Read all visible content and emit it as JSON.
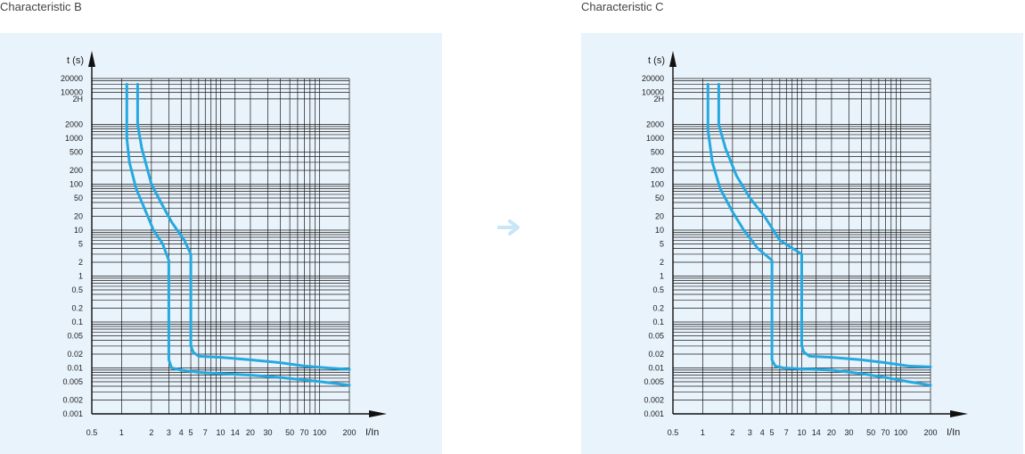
{
  "chart_data": [
    {
      "type": "line",
      "title": "Characteristic B",
      "xlabel": "I/In",
      "ylabel": "t (s)",
      "x_scale": "log",
      "y_scale": "log",
      "xlim": [
        0.5,
        200
      ],
      "ylim": [
        0.001,
        20000
      ],
      "x_ticks": [
        {
          "label": "0.5",
          "v": 0.5
        },
        {
          "label": "1",
          "v": 1
        },
        {
          "label": "2",
          "v": 2
        },
        {
          "label": "3",
          "v": 3
        },
        {
          "label": "4",
          "v": 4
        },
        {
          "label": "5",
          "v": 5
        },
        {
          "label": "7",
          "v": 7
        },
        {
          "label": "10",
          "v": 10
        },
        {
          "label": "14",
          "v": 14
        },
        {
          "label": "20",
          "v": 20
        },
        {
          "label": "30",
          "v": 30
        },
        {
          "label": "50",
          "v": 50
        },
        {
          "label": "70",
          "v": 70
        },
        {
          "label": "100",
          "v": 100
        },
        {
          "label": "200",
          "v": 200
        }
      ],
      "y_ticks": [
        {
          "label": "20000",
          "v": 20000
        },
        {
          "label": "10000",
          "v": 10000
        },
        {
          "label": "2H",
          "v": 7200
        },
        {
          "label": "2000",
          "v": 2000
        },
        {
          "label": "1000",
          "v": 1000
        },
        {
          "label": "500",
          "v": 500
        },
        {
          "label": "200",
          "v": 200
        },
        {
          "label": "100",
          "v": 100
        },
        {
          "label": "50",
          "v": 50
        },
        {
          "label": "20",
          "v": 20
        },
        {
          "label": "10",
          "v": 10
        },
        {
          "label": "5",
          "v": 5
        },
        {
          "label": "2",
          "v": 2
        },
        {
          "label": "1",
          "v": 1
        },
        {
          "label": "0.5",
          "v": 0.5
        },
        {
          "label": "0.2",
          "v": 0.2
        },
        {
          "label": "0.1",
          "v": 0.1
        },
        {
          "label": "0.05",
          "v": 0.05
        },
        {
          "label": "0.02",
          "v": 0.02
        },
        {
          "label": "0.01",
          "v": 0.01
        },
        {
          "label": "0.005",
          "v": 0.005
        },
        {
          "label": "0.002",
          "v": 0.002
        },
        {
          "label": "0.001",
          "v": 0.001
        }
      ],
      "series": [
        {
          "x": [
            1.13,
            1.13,
            1.2,
            1.4,
            1.7,
            2.1,
            2.6,
            3.0,
            3.0,
            3.2,
            4.0,
            6.0,
            10,
            20,
            40,
            70,
            120,
            200
          ],
          "y": [
            15000,
            1000,
            300,
            80,
            30,
            10,
            5,
            2.2,
            0.015,
            0.01,
            0.009,
            0.008,
            0.0075,
            0.007,
            0.0062,
            0.0055,
            0.0048,
            0.0042
          ]
        },
        {
          "x": [
            1.45,
            1.45,
            1.6,
            2.0,
            2.5,
            3.2,
            4.3,
            5.0,
            5.0,
            5.3,
            6.0,
            10,
            20,
            40,
            70,
            120,
            200
          ],
          "y": [
            15000,
            2000,
            600,
            100,
            40,
            15,
            6,
            3,
            0.03,
            0.022,
            0.018,
            0.017,
            0.015,
            0.013,
            0.011,
            0.01,
            0.0093
          ]
        }
      ]
    },
    {
      "type": "line",
      "title": "Characteristic C",
      "xlabel": "I/In",
      "ylabel": "t (s)",
      "x_scale": "log",
      "y_scale": "log",
      "xlim": [
        0.5,
        200
      ],
      "ylim": [
        0.001,
        20000
      ],
      "x_ticks": [
        {
          "label": "0.5",
          "v": 0.5
        },
        {
          "label": "1",
          "v": 1
        },
        {
          "label": "2",
          "v": 2
        },
        {
          "label": "3",
          "v": 3
        },
        {
          "label": "4",
          "v": 4
        },
        {
          "label": "5",
          "v": 5
        },
        {
          "label": "7",
          "v": 7
        },
        {
          "label": "10",
          "v": 10
        },
        {
          "label": "14",
          "v": 14
        },
        {
          "label": "20",
          "v": 20
        },
        {
          "label": "30",
          "v": 30
        },
        {
          "label": "50",
          "v": 50
        },
        {
          "label": "70",
          "v": 70
        },
        {
          "label": "100",
          "v": 100
        },
        {
          "label": "200",
          "v": 200
        }
      ],
      "y_ticks": [
        {
          "label": "20000",
          "v": 20000
        },
        {
          "label": "10000",
          "v": 10000
        },
        {
          "label": "2H",
          "v": 7200
        },
        {
          "label": "2000",
          "v": 2000
        },
        {
          "label": "1000",
          "v": 1000
        },
        {
          "label": "500",
          "v": 500
        },
        {
          "label": "200",
          "v": 200
        },
        {
          "label": "100",
          "v": 100
        },
        {
          "label": "50",
          "v": 50
        },
        {
          "label": "20",
          "v": 20
        },
        {
          "label": "10",
          "v": 10
        },
        {
          "label": "5",
          "v": 5
        },
        {
          "label": "2",
          "v": 2
        },
        {
          "label": "1",
          "v": 1
        },
        {
          "label": "0.5",
          "v": 0.5
        },
        {
          "label": "0.2",
          "v": 0.2
        },
        {
          "label": "0.1",
          "v": 0.1
        },
        {
          "label": "0.05",
          "v": 0.05
        },
        {
          "label": "0.02",
          "v": 0.02
        },
        {
          "label": "0.01",
          "v": 0.01
        },
        {
          "label": "0.005",
          "v": 0.005
        },
        {
          "label": "0.002",
          "v": 0.002
        },
        {
          "label": "0.001",
          "v": 0.001
        }
      ],
      "series": [
        {
          "x": [
            1.13,
            1.13,
            1.25,
            1.5,
            2.0,
            2.6,
            3.6,
            5.0,
            5.0,
            5.4,
            6.5,
            10,
            20,
            40,
            70,
            120,
            200
          ],
          "y": [
            15000,
            1500,
            300,
            80,
            25,
            10,
            4,
            2.2,
            0.015,
            0.011,
            0.01,
            0.0095,
            0.009,
            0.0075,
            0.0062,
            0.005,
            0.0042
          ]
        },
        {
          "x": [
            1.45,
            1.45,
            1.7,
            2.2,
            3.0,
            4.2,
            6.0,
            10,
            10,
            10.5,
            12,
            20,
            40,
            70,
            120,
            200
          ],
          "y": [
            15000,
            2000,
            600,
            150,
            50,
            20,
            6,
            3,
            0.03,
            0.022,
            0.018,
            0.017,
            0.015,
            0.013,
            0.011,
            0.0105
          ]
        }
      ]
    }
  ],
  "colors": {
    "curve": "#26a9e0",
    "grid": "#1a1a1a",
    "panel_bg": "#e9f3fb",
    "decorative_arrow": "#c9e6f7"
  },
  "icons": {
    "between_panels": "arrow-right-icon"
  }
}
